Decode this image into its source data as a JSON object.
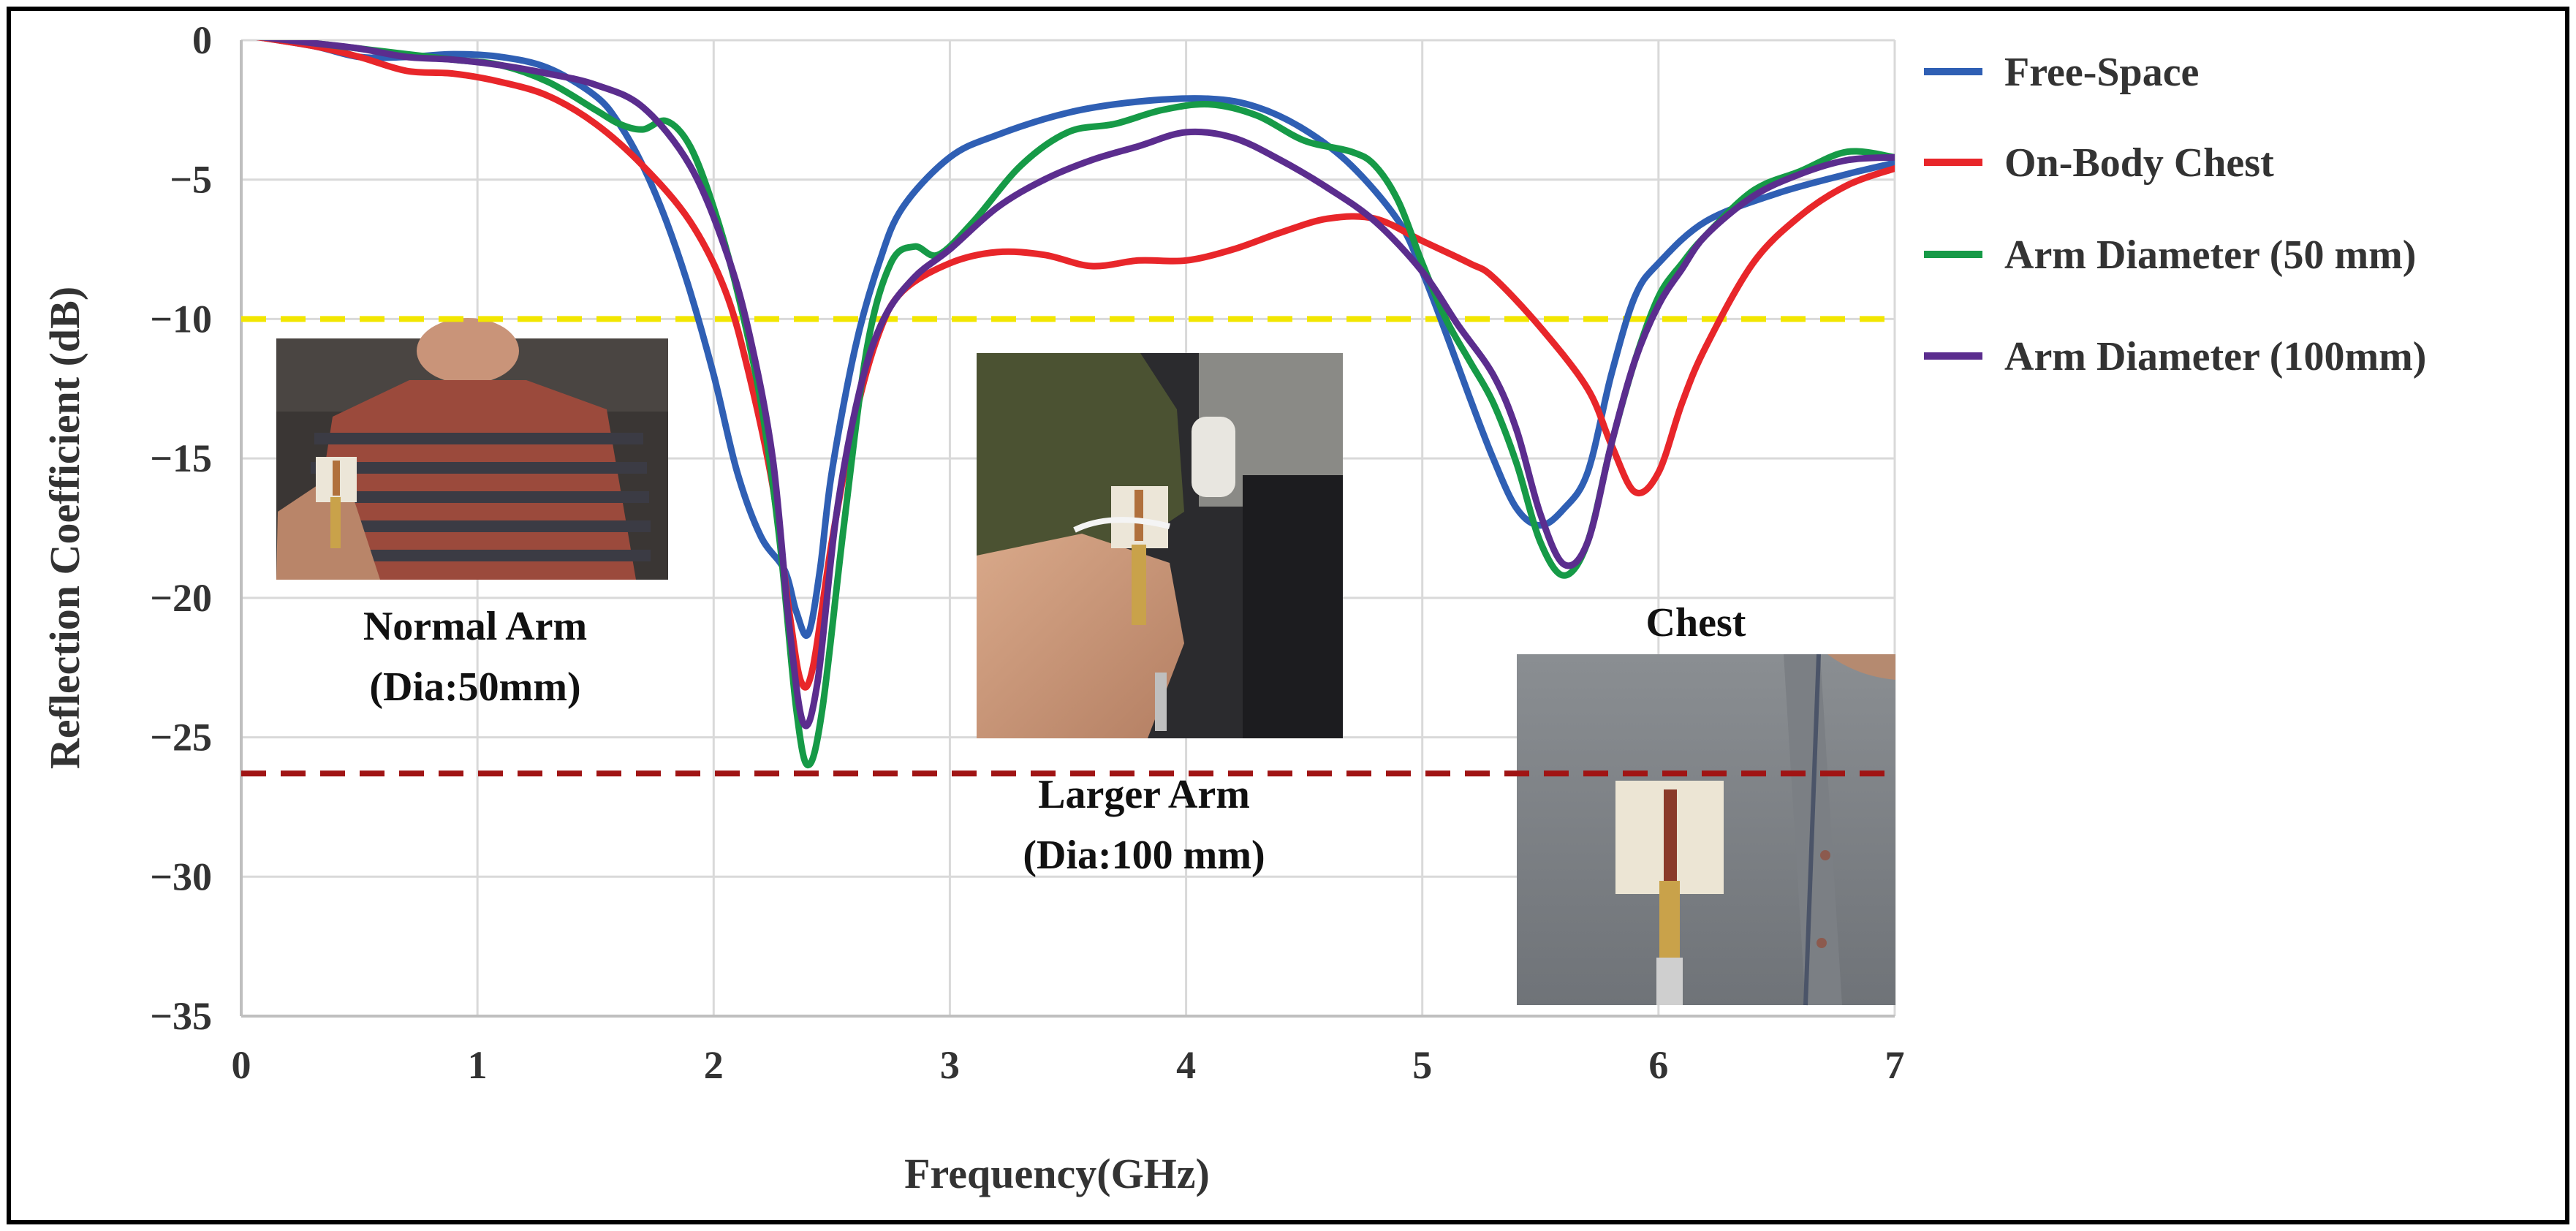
{
  "chart_data": {
    "type": "line",
    "xlabel": "Frequency(GHz)",
    "ylabel": "Reflection Coefficient (dB)",
    "xlim": [
      0,
      7
    ],
    "ylim": [
      -35,
      0
    ],
    "x_ticks": [
      "0",
      "1",
      "2",
      "3",
      "4",
      "5",
      "6",
      "7"
    ],
    "y_ticks": [
      "0",
      "−5",
      "−10",
      "−15",
      "−20",
      "−25",
      "−30",
      "−35"
    ],
    "grid": true,
    "legend_position": "right",
    "series": [
      {
        "name": "Free-Space",
        "color": "#2f5fb4",
        "points": [
          [
            0,
            0.2
          ],
          [
            0.3,
            -0.2
          ],
          [
            0.5,
            -0.6
          ],
          [
            0.7,
            -0.6
          ],
          [
            0.9,
            -0.5
          ],
          [
            1.1,
            -0.6
          ],
          [
            1.3,
            -1
          ],
          [
            1.5,
            -2
          ],
          [
            1.6,
            -3
          ],
          [
            1.7,
            -4.5
          ],
          [
            1.8,
            -6.5
          ],
          [
            1.9,
            -9
          ],
          [
            2,
            -12
          ],
          [
            2.1,
            -15.5
          ],
          [
            2.2,
            -17.8
          ],
          [
            2.3,
            -19
          ],
          [
            2.35,
            -20.5
          ],
          [
            2.4,
            -21.3
          ],
          [
            2.45,
            -19
          ],
          [
            2.5,
            -15.5
          ],
          [
            2.6,
            -11
          ],
          [
            2.7,
            -8
          ],
          [
            2.8,
            -6
          ],
          [
            3,
            -4.2
          ],
          [
            3.2,
            -3.4
          ],
          [
            3.5,
            -2.6
          ],
          [
            3.8,
            -2.2
          ],
          [
            4.1,
            -2.1
          ],
          [
            4.3,
            -2.4
          ],
          [
            4.5,
            -3.2
          ],
          [
            4.7,
            -4.5
          ],
          [
            4.9,
            -6.5
          ],
          [
            5,
            -8.3
          ],
          [
            5.1,
            -10.5
          ],
          [
            5.2,
            -12.8
          ],
          [
            5.3,
            -15
          ],
          [
            5.4,
            -16.8
          ],
          [
            5.5,
            -17.4
          ],
          [
            5.6,
            -16.8
          ],
          [
            5.7,
            -15.5
          ],
          [
            5.8,
            -12
          ],
          [
            5.9,
            -9.2
          ],
          [
            6,
            -8
          ],
          [
            6.2,
            -6.5
          ],
          [
            6.5,
            -5.5
          ],
          [
            6.8,
            -4.8
          ],
          [
            7,
            -4.4
          ]
        ]
      },
      {
        "name": "On-Body Chest",
        "color": "#e8262a",
        "points": [
          [
            0,
            0.2
          ],
          [
            0.3,
            -0.2
          ],
          [
            0.5,
            -0.6
          ],
          [
            0.7,
            -1.1
          ],
          [
            0.9,
            -1.2
          ],
          [
            1.1,
            -1.5
          ],
          [
            1.3,
            -2
          ],
          [
            1.5,
            -3
          ],
          [
            1.7,
            -4.5
          ],
          [
            1.9,
            -6.5
          ],
          [
            2.05,
            -9
          ],
          [
            2.15,
            -12
          ],
          [
            2.25,
            -16
          ],
          [
            2.32,
            -20.5
          ],
          [
            2.37,
            -23
          ],
          [
            2.42,
            -22.5
          ],
          [
            2.5,
            -18
          ],
          [
            2.6,
            -13.5
          ],
          [
            2.7,
            -10.5
          ],
          [
            2.8,
            -9
          ],
          [
            3,
            -8
          ],
          [
            3.2,
            -7.6
          ],
          [
            3.4,
            -7.7
          ],
          [
            3.6,
            -8.1
          ],
          [
            3.8,
            -7.9
          ],
          [
            4,
            -7.9
          ],
          [
            4.2,
            -7.5
          ],
          [
            4.4,
            -6.9
          ],
          [
            4.6,
            -6.4
          ],
          [
            4.8,
            -6.4
          ],
          [
            5,
            -7.2
          ],
          [
            5.2,
            -8
          ],
          [
            5.3,
            -8.5
          ],
          [
            5.5,
            -10.3
          ],
          [
            5.7,
            -12.5
          ],
          [
            5.8,
            -14.5
          ],
          [
            5.9,
            -16.2
          ],
          [
            6,
            -15.5
          ],
          [
            6.1,
            -13
          ],
          [
            6.2,
            -11
          ],
          [
            6.4,
            -8
          ],
          [
            6.6,
            -6.3
          ],
          [
            6.8,
            -5.2
          ],
          [
            7,
            -4.6
          ]
        ]
      },
      {
        "name": "Arm Diameter (50 mm)",
        "color": "#169a47",
        "points": [
          [
            0,
            0.2
          ],
          [
            0.3,
            -0.1
          ],
          [
            0.5,
            -0.3
          ],
          [
            0.7,
            -0.5
          ],
          [
            0.9,
            -0.7
          ],
          [
            1.1,
            -0.9
          ],
          [
            1.3,
            -1.5
          ],
          [
            1.5,
            -2.5
          ],
          [
            1.6,
            -3
          ],
          [
            1.7,
            -3.2
          ],
          [
            1.8,
            -2.9
          ],
          [
            1.9,
            -3.8
          ],
          [
            2,
            -6
          ],
          [
            2.1,
            -9
          ],
          [
            2.2,
            -13
          ],
          [
            2.28,
            -18
          ],
          [
            2.35,
            -24
          ],
          [
            2.4,
            -26
          ],
          [
            2.46,
            -24
          ],
          [
            2.55,
            -17.5
          ],
          [
            2.65,
            -11
          ],
          [
            2.75,
            -8
          ],
          [
            2.85,
            -7.4
          ],
          [
            2.95,
            -7.7
          ],
          [
            3.1,
            -6.5
          ],
          [
            3.3,
            -4.5
          ],
          [
            3.5,
            -3.3
          ],
          [
            3.7,
            -3
          ],
          [
            3.9,
            -2.5
          ],
          [
            4.1,
            -2.3
          ],
          [
            4.3,
            -2.7
          ],
          [
            4.5,
            -3.6
          ],
          [
            4.7,
            -4
          ],
          [
            4.8,
            -4.5
          ],
          [
            4.9,
            -5.8
          ],
          [
            5,
            -8
          ],
          [
            5.1,
            -10
          ],
          [
            5.2,
            -11.5
          ],
          [
            5.3,
            -13
          ],
          [
            5.4,
            -15.2
          ],
          [
            5.5,
            -18
          ],
          [
            5.6,
            -19.2
          ],
          [
            5.7,
            -18
          ],
          [
            5.8,
            -14.5
          ],
          [
            5.9,
            -11.5
          ],
          [
            6,
            -9.2
          ],
          [
            6.1,
            -8
          ],
          [
            6.2,
            -7
          ],
          [
            6.4,
            -5.4
          ],
          [
            6.6,
            -4.7
          ],
          [
            6.8,
            -4
          ],
          [
            7,
            -4.2
          ]
        ]
      },
      {
        "name": "Arm Diameter (100mm)",
        "color": "#5b2d8e",
        "points": [
          [
            0,
            0.2
          ],
          [
            0.3,
            -0.1
          ],
          [
            0.5,
            -0.3
          ],
          [
            0.7,
            -0.6
          ],
          [
            0.9,
            -0.7
          ],
          [
            1.1,
            -0.9
          ],
          [
            1.3,
            -1.2
          ],
          [
            1.5,
            -1.6
          ],
          [
            1.7,
            -2.4
          ],
          [
            1.9,
            -4.5
          ],
          [
            2.05,
            -7.5
          ],
          [
            2.15,
            -10.5
          ],
          [
            2.25,
            -15
          ],
          [
            2.32,
            -21
          ],
          [
            2.38,
            -24.5
          ],
          [
            2.44,
            -23
          ],
          [
            2.52,
            -17
          ],
          [
            2.62,
            -12.5
          ],
          [
            2.72,
            -10
          ],
          [
            2.85,
            -8.5
          ],
          [
            3,
            -7.5
          ],
          [
            3.2,
            -6
          ],
          [
            3.4,
            -5
          ],
          [
            3.6,
            -4.3
          ],
          [
            3.8,
            -3.8
          ],
          [
            4,
            -3.3
          ],
          [
            4.2,
            -3.5
          ],
          [
            4.4,
            -4.3
          ],
          [
            4.6,
            -5.3
          ],
          [
            4.8,
            -6.5
          ],
          [
            5,
            -8.3
          ],
          [
            5.15,
            -10.2
          ],
          [
            5.3,
            -12
          ],
          [
            5.4,
            -14
          ],
          [
            5.5,
            -17
          ],
          [
            5.6,
            -18.8
          ],
          [
            5.7,
            -18
          ],
          [
            5.8,
            -14.5
          ],
          [
            5.9,
            -11.5
          ],
          [
            6,
            -9.5
          ],
          [
            6.1,
            -8.2
          ],
          [
            6.2,
            -7
          ],
          [
            6.4,
            -5.6
          ],
          [
            6.6,
            -4.8
          ],
          [
            6.8,
            -4.3
          ],
          [
            7,
            -4.2
          ]
        ]
      }
    ],
    "reference_lines": [
      {
        "y": -10,
        "color": "#f2e600",
        "style": "dashed"
      },
      {
        "y": -26.3,
        "color": "#a01414",
        "style": "dashed"
      }
    ],
    "insets": [
      {
        "id": "normal-arm",
        "caption_lines": [
          "Normal Arm",
          "(Dia:50mm)"
        ]
      },
      {
        "id": "larger-arm",
        "caption_lines": [
          "Larger Arm",
          "(Dia:100 mm)"
        ]
      },
      {
        "id": "chest",
        "caption_lines": [
          "Chest"
        ]
      }
    ]
  }
}
